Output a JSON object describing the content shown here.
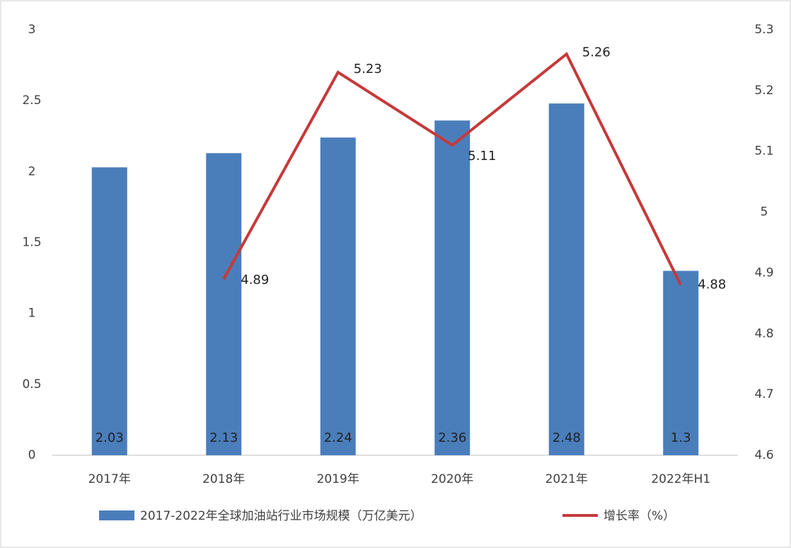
{
  "chart_data": {
    "type": "bar",
    "categories": [
      "2017年",
      "2018年",
      "2019年",
      "2020年",
      "2021年",
      "2022年H1"
    ],
    "series": [
      {
        "name": "2017-2022年全球加油站行业市场规模（万亿美元）",
        "type": "bar",
        "color": "#4a7ebb",
        "values": [
          2.03,
          2.13,
          2.24,
          2.36,
          2.48,
          1.3
        ]
      },
      {
        "name": "增长率（%）",
        "type": "line",
        "axis": "y2",
        "color": "#c6393a",
        "values": [
          null,
          4.89,
          5.23,
          5.11,
          5.26,
          4.88
        ]
      }
    ],
    "ylim": [
      0,
      3
    ],
    "yticks": [
      0,
      0.5,
      1,
      1.5,
      2,
      2.5,
      3
    ],
    "y2lim": [
      4.6,
      5.3
    ],
    "y2ticks": [
      4.6,
      4.7,
      4.8,
      4.9,
      5,
      5.1,
      5.2,
      5.3
    ],
    "legend": "bottom"
  }
}
